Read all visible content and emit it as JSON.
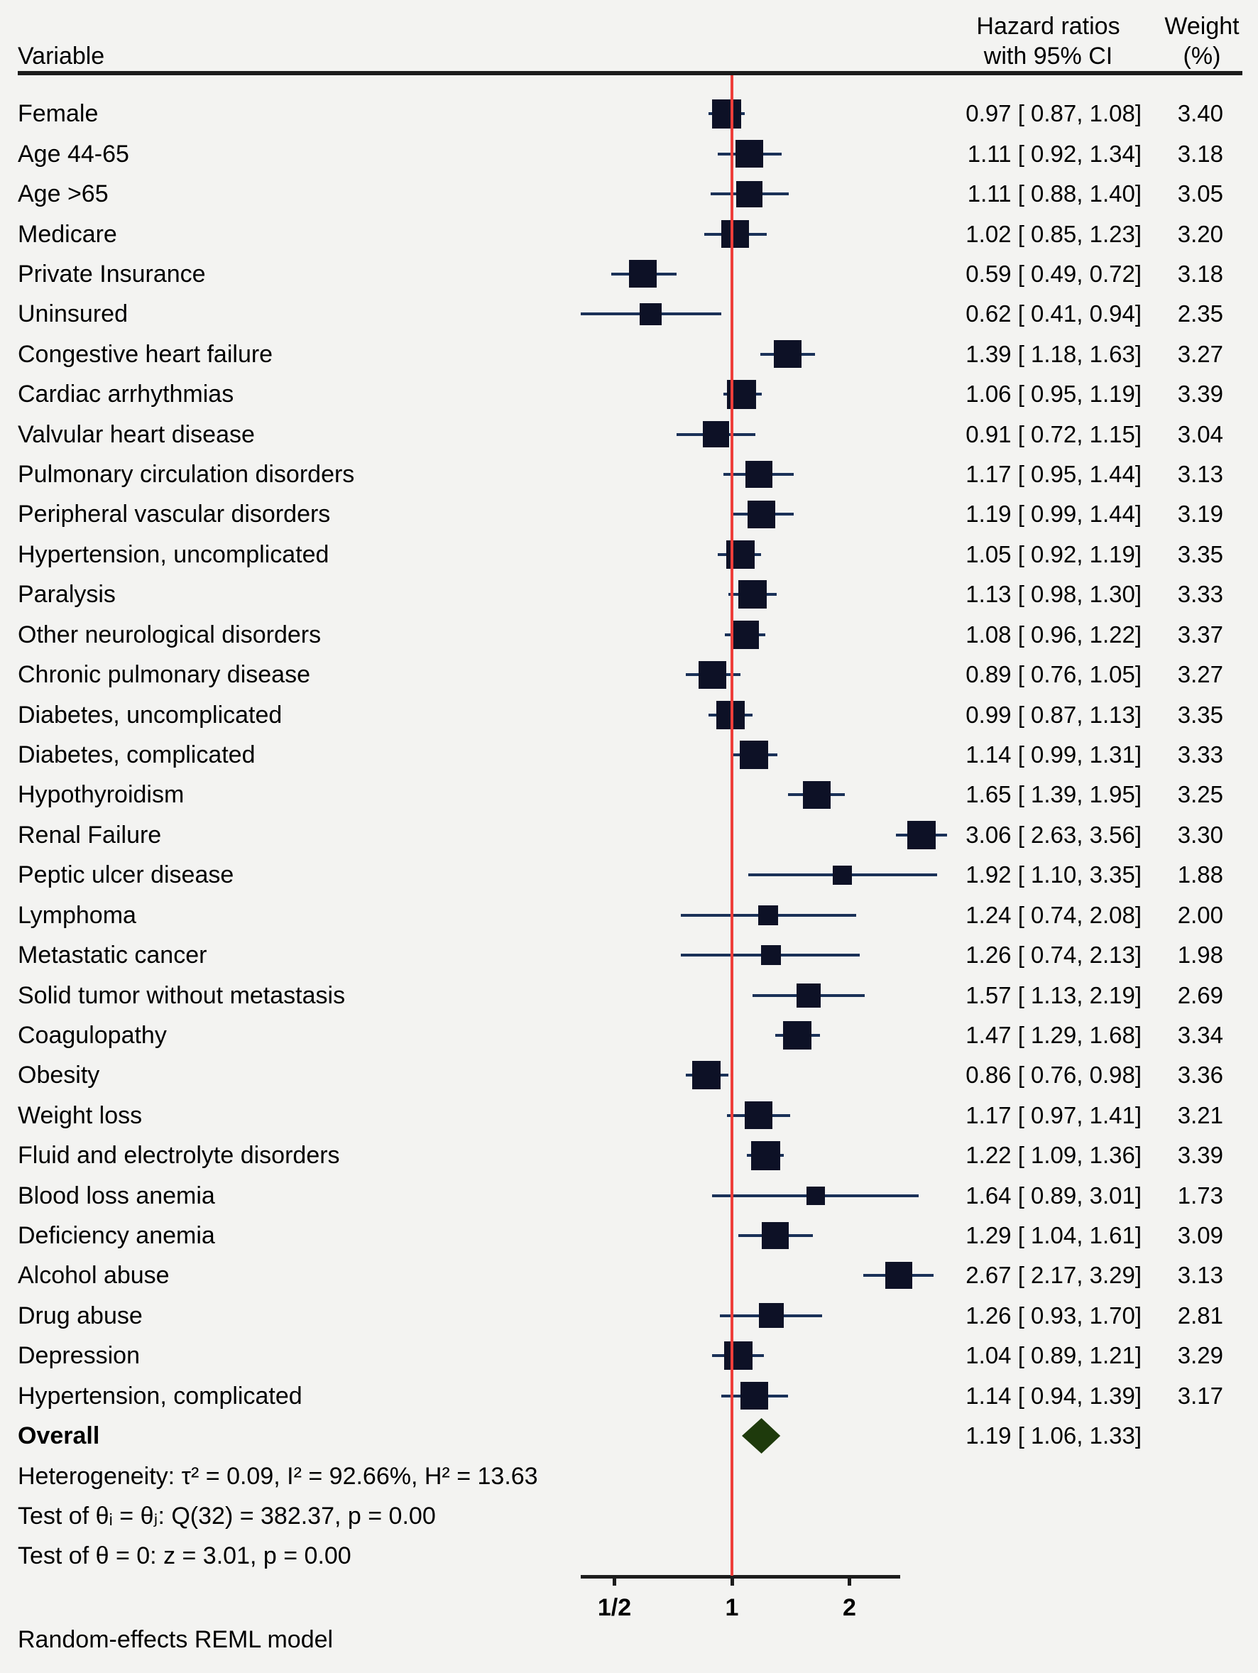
{
  "header": {
    "variable_label": "Variable",
    "hr_column_title": "Hazard ratios\nwith 95% CI",
    "weight_column_title": "Weight\n(%)"
  },
  "colors": {
    "background": "#f3f3f1",
    "square": "#0d1126",
    "ci_line": "#1a3158",
    "reference_line_red": "#ee3e3a",
    "diamond_green": "#1e3a0c",
    "axis_black": "#1c1c1c"
  },
  "chart_data": {
    "type": "forest",
    "x_scale": "log2",
    "x_axis_range": [
      0.41,
      2.7
    ],
    "reference_line_value": 1,
    "axis_ticks": [
      {
        "label": "1/2",
        "value": 0.5
      },
      {
        "label": "1",
        "value": 1
      },
      {
        "label": "2",
        "value": 2
      }
    ],
    "rows": [
      {
        "label": "Female",
        "hr": 0.97,
        "lo": 0.87,
        "hi": 1.08,
        "weight": 3.4
      },
      {
        "label": "Age 44-65",
        "hr": 1.11,
        "lo": 0.92,
        "hi": 1.34,
        "weight": 3.18
      },
      {
        "label": "Age >65",
        "hr": 1.11,
        "lo": 0.88,
        "hi": 1.4,
        "weight": 3.05
      },
      {
        "label": "Medicare",
        "hr": 1.02,
        "lo": 0.85,
        "hi": 1.23,
        "weight": 3.2
      },
      {
        "label": "Private Insurance",
        "hr": 0.59,
        "lo": 0.49,
        "hi": 0.72,
        "weight": 3.18
      },
      {
        "label": "Uninsured",
        "hr": 0.62,
        "lo": 0.41,
        "hi": 0.94,
        "weight": 2.35
      },
      {
        "label": "Congestive heart failure",
        "hr": 1.39,
        "lo": 1.18,
        "hi": 1.63,
        "weight": 3.27
      },
      {
        "label": "Cardiac arrhythmias",
        "hr": 1.06,
        "lo": 0.95,
        "hi": 1.19,
        "weight": 3.39
      },
      {
        "label": "Valvular heart disease",
        "hr": 0.91,
        "lo": 0.72,
        "hi": 1.15,
        "weight": 3.04
      },
      {
        "label": "Pulmonary circulation disorders",
        "hr": 1.17,
        "lo": 0.95,
        "hi": 1.44,
        "weight": 3.13
      },
      {
        "label": "Peripheral vascular disorders",
        "hr": 1.19,
        "lo": 0.99,
        "hi": 1.44,
        "weight": 3.19
      },
      {
        "label": "Hypertension, uncomplicated",
        "hr": 1.05,
        "lo": 0.92,
        "hi": 1.19,
        "weight": 3.35
      },
      {
        "label": "Paralysis",
        "hr": 1.13,
        "lo": 0.98,
        "hi": 1.3,
        "weight": 3.33
      },
      {
        "label": "Other neurological disorders",
        "hr": 1.08,
        "lo": 0.96,
        "hi": 1.22,
        "weight": 3.37
      },
      {
        "label": "Chronic pulmonary disease",
        "hr": 0.89,
        "lo": 0.76,
        "hi": 1.05,
        "weight": 3.27
      },
      {
        "label": "Diabetes, uncomplicated",
        "hr": 0.99,
        "lo": 0.87,
        "hi": 1.13,
        "weight": 3.35
      },
      {
        "label": "Diabetes, complicated",
        "hr": 1.14,
        "lo": 0.99,
        "hi": 1.31,
        "weight": 3.33
      },
      {
        "label": "Hypothyroidism",
        "hr": 1.65,
        "lo": 1.39,
        "hi": 1.95,
        "weight": 3.25
      },
      {
        "label": "Renal Failure",
        "hr": 3.06,
        "lo": 2.63,
        "hi": 3.56,
        "weight": 3.3
      },
      {
        "label": "Peptic ulcer disease",
        "hr": 1.92,
        "lo": 1.1,
        "hi": 3.35,
        "weight": 1.88
      },
      {
        "label": "Lymphoma",
        "hr": 1.24,
        "lo": 0.74,
        "hi": 2.08,
        "weight": 2.0
      },
      {
        "label": "Metastatic cancer",
        "hr": 1.26,
        "lo": 0.74,
        "hi": 2.13,
        "weight": 1.98
      },
      {
        "label": "Solid tumor without metastasis",
        "hr": 1.57,
        "lo": 1.13,
        "hi": 2.19,
        "weight": 2.69
      },
      {
        "label": "Coagulopathy",
        "hr": 1.47,
        "lo": 1.29,
        "hi": 1.68,
        "weight": 3.34
      },
      {
        "label": "Obesity",
        "hr": 0.86,
        "lo": 0.76,
        "hi": 0.98,
        "weight": 3.36
      },
      {
        "label": "Weight loss",
        "hr": 1.17,
        "lo": 0.97,
        "hi": 1.41,
        "weight": 3.21
      },
      {
        "label": "Fluid and electrolyte disorders",
        "hr": 1.22,
        "lo": 1.09,
        "hi": 1.36,
        "weight": 3.39
      },
      {
        "label": "Blood loss anemia",
        "hr": 1.64,
        "lo": 0.89,
        "hi": 3.01,
        "weight": 1.73
      },
      {
        "label": "Deficiency anemia",
        "hr": 1.29,
        "lo": 1.04,
        "hi": 1.61,
        "weight": 3.09
      },
      {
        "label": "Alcohol abuse",
        "hr": 2.67,
        "lo": 2.17,
        "hi": 3.29,
        "weight": 3.13
      },
      {
        "label": "Drug abuse",
        "hr": 1.26,
        "lo": 0.93,
        "hi": 1.7,
        "weight": 2.81
      },
      {
        "label": "Depression",
        "hr": 1.04,
        "lo": 0.89,
        "hi": 1.21,
        "weight": 3.29
      },
      {
        "label": "Hypertension, complicated",
        "hr": 1.14,
        "lo": 0.94,
        "hi": 1.39,
        "weight": 3.17
      }
    ],
    "overall": {
      "label": "Overall",
      "hr": 1.19,
      "lo": 1.06,
      "hi": 1.33
    },
    "stats_lines": [
      "Heterogeneity: τ² = 0.09, I² = 92.66%, H² = 13.63",
      "Test of θᵢ = θⱼ: Q(32) = 382.37, p = 0.00",
      "Test of θ = 0: z = 3.01, p = 0.00"
    ],
    "footnote": "Random-effects REML model",
    "legend_position": "none",
    "grid": false
  }
}
